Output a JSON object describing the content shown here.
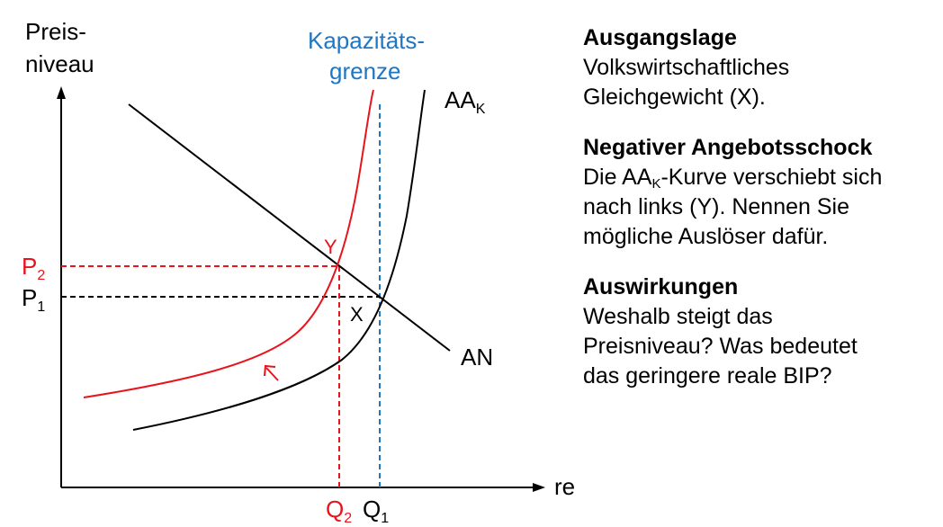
{
  "diagram": {
    "y_axis_label_line1": "Preis-",
    "y_axis_label_line2": "niveau",
    "x_axis_label": "reales BIP",
    "capacity_label_line1": "Kapazitäts-",
    "capacity_label_line2": "grenze",
    "aa_label": "AA",
    "aa_sub": "K",
    "an_label": "AN",
    "point_x": "X",
    "point_y": "Y",
    "p2_label": "P",
    "p2_sub": "2",
    "p1_label": "P",
    "p1_sub": "1",
    "q2_label": "Q",
    "q2_sub": "2",
    "q1_label": "Q",
    "q1_sub": "1",
    "colors": {
      "shifted_curve": "#e8141c",
      "capacity_line": "#1f77c4",
      "axes": "#000000"
    }
  },
  "sidebar": {
    "ausgangslage": {
      "title": "Ausgangslage",
      "line1": "Volkswirtschaftliches",
      "line2": "Gleichgewicht (X)."
    },
    "schock": {
      "title": "Negativer Angebotsschock",
      "line1_pre": "Die AA",
      "line1_sub": "K",
      "line1_post": "-Kurve verschiebt sich",
      "line2": "nach links (Y). Nennen Sie",
      "line3": "mögliche Auslöser dafür."
    },
    "auswirkungen": {
      "title": "Auswirkungen",
      "line1": "Weshalb steigt das",
      "line2": "Preisniveau? Was bedeutet",
      "line3": "das geringere reale BIP?"
    }
  }
}
